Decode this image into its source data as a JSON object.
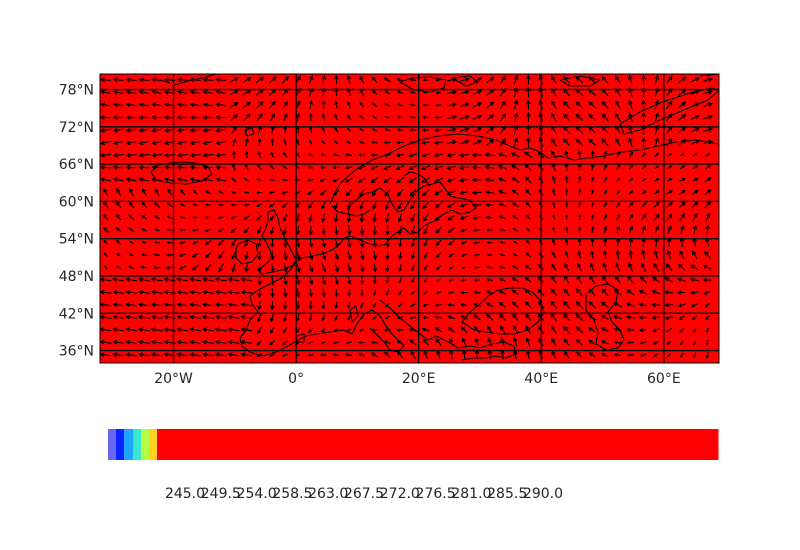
{
  "map": {
    "projection": "plate-carree",
    "lon_range": [
      -32,
      69
    ],
    "lat_range": [
      34,
      80.5
    ],
    "field_color": "#ff0000",
    "grid": true,
    "lat_ticks": [
      {
        "value": 78,
        "label": "78°N"
      },
      {
        "value": 72,
        "label": "72°N"
      },
      {
        "value": 66,
        "label": "66°N"
      },
      {
        "value": 60,
        "label": "60°N"
      },
      {
        "value": 54,
        "label": "54°N"
      },
      {
        "value": 48,
        "label": "48°N"
      },
      {
        "value": 42,
        "label": "42°N"
      },
      {
        "value": 36,
        "label": "36°N"
      }
    ],
    "lon_ticks": [
      {
        "value": -20,
        "label": "20°W"
      },
      {
        "value": 0,
        "label": "0°"
      },
      {
        "value": 20,
        "label": "20°E"
      },
      {
        "value": 40,
        "label": "40°E"
      },
      {
        "value": 60,
        "label": "60°E"
      }
    ],
    "vector_field": "wind-arrows"
  },
  "colorbar": {
    "orientation": "horizontal",
    "segments": [
      {
        "color": "#6666ee"
      },
      {
        "color": "#0a24ff"
      },
      {
        "color": "#1fa4ff"
      },
      {
        "color": "#38e8d0"
      },
      {
        "color": "#b6ff48"
      },
      {
        "color": "#ffd21e"
      },
      {
        "color": "#ff0000"
      }
    ],
    "ticks": [
      "245.0",
      "249.5",
      "254.0",
      "258.5",
      "263.0",
      "267.5",
      "272.0",
      "276.5",
      "281.0",
      "285.5",
      "290.0"
    ]
  }
}
